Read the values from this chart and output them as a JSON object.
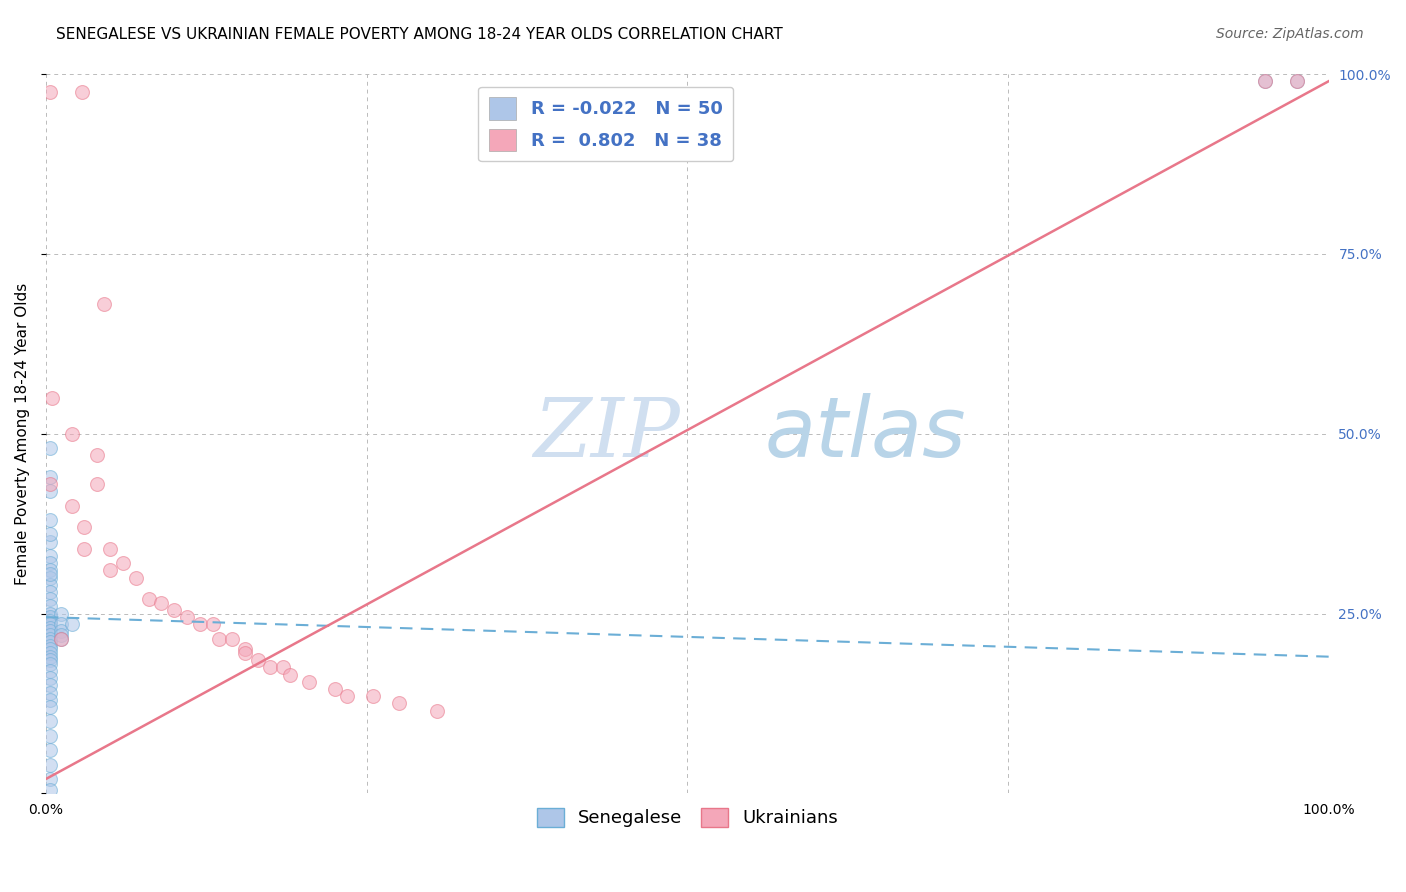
{
  "title": "SENEGALESE VS UKRAINIAN FEMALE POVERTY AMONG 18-24 YEAR OLDS CORRELATION CHART",
  "source": "Source: ZipAtlas.com",
  "ylabel": "Female Poverty Among 18-24 Year Olds",
  "xlim": [
    0.0,
    1.0
  ],
  "ylim": [
    0.0,
    1.0
  ],
  "xticks": [
    0.0,
    0.25,
    0.5,
    0.75,
    1.0
  ],
  "yticks": [
    0.0,
    0.25,
    0.5,
    0.75,
    1.0
  ],
  "xtick_labels": [
    "0.0%",
    "",
    "",
    "",
    "100.0%"
  ],
  "ytick_labels": [
    "",
    "25.0%",
    "50.0%",
    "75.0%",
    "100.0%"
  ],
  "watermark_line1": "ZIP",
  "watermark_line2": "atlas",
  "legend_entries": [
    {
      "label": "Senegalese",
      "color": "#aec6e8",
      "R": -0.022,
      "N": 50
    },
    {
      "label": "Ukrainians",
      "color": "#f4a7b9",
      "R": 0.802,
      "N": 38
    }
  ],
  "senegalese_scatter": [
    [
      0.003,
      0.48
    ],
    [
      0.003,
      0.44
    ],
    [
      0.003,
      0.42
    ],
    [
      0.003,
      0.38
    ],
    [
      0.003,
      0.35
    ],
    [
      0.003,
      0.33
    ],
    [
      0.003,
      0.32
    ],
    [
      0.003,
      0.31
    ],
    [
      0.003,
      0.3
    ],
    [
      0.003,
      0.29
    ],
    [
      0.003,
      0.28
    ],
    [
      0.003,
      0.27
    ],
    [
      0.003,
      0.26
    ],
    [
      0.003,
      0.25
    ],
    [
      0.003,
      0.245
    ],
    [
      0.003,
      0.24
    ],
    [
      0.003,
      0.235
    ],
    [
      0.003,
      0.23
    ],
    [
      0.003,
      0.225
    ],
    [
      0.003,
      0.22
    ],
    [
      0.003,
      0.215
    ],
    [
      0.003,
      0.21
    ],
    [
      0.003,
      0.205
    ],
    [
      0.003,
      0.2
    ],
    [
      0.003,
      0.195
    ],
    [
      0.003,
      0.19
    ],
    [
      0.003,
      0.185
    ],
    [
      0.003,
      0.18
    ],
    [
      0.003,
      0.17
    ],
    [
      0.003,
      0.16
    ],
    [
      0.003,
      0.15
    ],
    [
      0.003,
      0.14
    ],
    [
      0.003,
      0.13
    ],
    [
      0.003,
      0.12
    ],
    [
      0.003,
      0.1
    ],
    [
      0.003,
      0.08
    ],
    [
      0.003,
      0.06
    ],
    [
      0.003,
      0.04
    ],
    [
      0.003,
      0.02
    ],
    [
      0.003,
      0.005
    ],
    [
      0.012,
      0.25
    ],
    [
      0.012,
      0.235
    ],
    [
      0.012,
      0.225
    ],
    [
      0.012,
      0.22
    ],
    [
      0.012,
      0.215
    ],
    [
      0.02,
      0.235
    ],
    [
      0.95,
      0.99
    ],
    [
      0.975,
      0.99
    ],
    [
      0.003,
      0.36
    ],
    [
      0.003,
      0.305
    ]
  ],
  "ukrainian_scatter": [
    [
      0.003,
      0.975
    ],
    [
      0.028,
      0.975
    ],
    [
      0.045,
      0.68
    ],
    [
      0.005,
      0.55
    ],
    [
      0.02,
      0.5
    ],
    [
      0.04,
      0.47
    ],
    [
      0.04,
      0.43
    ],
    [
      0.02,
      0.4
    ],
    [
      0.03,
      0.37
    ],
    [
      0.03,
      0.34
    ],
    [
      0.05,
      0.34
    ],
    [
      0.06,
      0.32
    ],
    [
      0.05,
      0.31
    ],
    [
      0.07,
      0.3
    ],
    [
      0.08,
      0.27
    ],
    [
      0.09,
      0.265
    ],
    [
      0.1,
      0.255
    ],
    [
      0.11,
      0.245
    ],
    [
      0.12,
      0.235
    ],
    [
      0.13,
      0.235
    ],
    [
      0.135,
      0.215
    ],
    [
      0.145,
      0.215
    ],
    [
      0.155,
      0.2
    ],
    [
      0.155,
      0.195
    ],
    [
      0.165,
      0.185
    ],
    [
      0.175,
      0.175
    ],
    [
      0.185,
      0.175
    ],
    [
      0.19,
      0.165
    ],
    [
      0.205,
      0.155
    ],
    [
      0.225,
      0.145
    ],
    [
      0.235,
      0.135
    ],
    [
      0.255,
      0.135
    ],
    [
      0.275,
      0.125
    ],
    [
      0.305,
      0.115
    ],
    [
      0.95,
      0.99
    ],
    [
      0.975,
      0.99
    ],
    [
      0.003,
      0.43
    ],
    [
      0.012,
      0.215
    ]
  ],
  "senegalese_line": {
    "x": [
      0.0,
      1.0
    ],
    "y": [
      0.245,
      0.19
    ],
    "color": "#6baed6",
    "linestyle": "dashed",
    "linewidth": 1.5
  },
  "ukrainian_line": {
    "x": [
      0.0,
      1.0
    ],
    "y": [
      0.02,
      0.99
    ],
    "color": "#e8778a",
    "linestyle": "solid",
    "linewidth": 1.8
  },
  "scatter_size": 100,
  "scatter_alpha": 0.55,
  "senegalese_color": "#aec6e8",
  "ukrainian_color": "#f4a7b9",
  "senegalese_edge": "#6baed6",
  "ukrainian_edge": "#e8778a",
  "grid_color": "#bbbbbb",
  "bg_color": "#ffffff",
  "title_fontsize": 11,
  "axis_label_fontsize": 11,
  "tick_fontsize": 10,
  "legend_fontsize": 13,
  "source_fontsize": 10,
  "watermark_color_zip": "#d0dff0",
  "watermark_color_atlas": "#b8d4e8",
  "watermark_fontsize": 60,
  "right_tick_color": "#4472c4"
}
